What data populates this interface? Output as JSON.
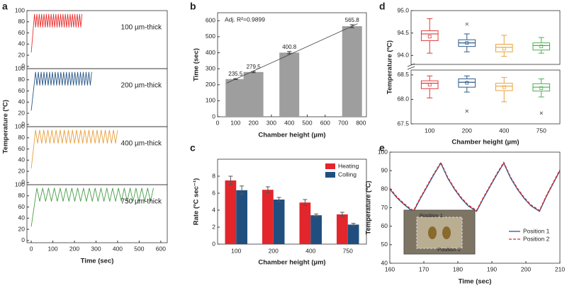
{
  "chart_data": [
    {
      "type": "line",
      "panel_label": "a",
      "stacked": true,
      "xlabel": "Time (sec)",
      "ylabel": "Temperature (ºC)",
      "xlim": [
        -20,
        630
      ],
      "xticks": [
        0,
        100,
        200,
        300,
        400,
        500,
        600
      ],
      "ylim": [
        -4,
        100
      ],
      "yticks": [
        0,
        20,
        40,
        60,
        80,
        100
      ],
      "series": [
        {
          "name": "100 µm-thick",
          "color": "#e8302f",
          "x": [
            0,
            15,
            20.5,
            26,
            31.5,
            37,
            42.5,
            48,
            53.5,
            59,
            64.5,
            70,
            75.5,
            81,
            86.5,
            92,
            97.5,
            103,
            108.5,
            114,
            119.5,
            125,
            130.5,
            136,
            141.5,
            147,
            152.5,
            158,
            163.5,
            169,
            174.5,
            180,
            185.5,
            191,
            196.5,
            202,
            207.5,
            213,
            218.5,
            224,
            229.5,
            235
          ],
          "values": [
            25,
            94,
            70,
            94,
            70,
            94,
            70,
            94,
            70,
            94,
            70,
            94,
            70,
            94,
            70,
            94,
            70,
            94,
            70,
            94,
            70,
            94,
            70,
            94,
            70,
            94,
            70,
            94,
            70,
            94,
            70,
            94,
            70,
            94,
            70,
            94,
            70,
            94,
            70,
            94,
            70,
            94
          ]
        },
        {
          "name": "200 µm-thick",
          "color": "#2b5888",
          "x": [
            0,
            20,
            26.5,
            33,
            39.5,
            46,
            52.5,
            59,
            65.5,
            72,
            78.5,
            85,
            91.5,
            98,
            104.5,
            111,
            117.5,
            124,
            130.5,
            137,
            143.5,
            150,
            156.5,
            163,
            169.5,
            176,
            182.5,
            189,
            195.5,
            202,
            208.5,
            215,
            221.5,
            228,
            234.5,
            241,
            247.5,
            254,
            260.5,
            267,
            273.5,
            280
          ],
          "values": [
            25,
            94,
            70,
            94,
            70,
            94,
            70,
            94,
            70,
            94,
            70,
            94,
            70,
            94,
            70,
            94,
            70,
            94,
            70,
            94,
            70,
            94,
            70,
            94,
            70,
            94,
            70,
            94,
            70,
            94,
            70,
            94,
            70,
            94,
            70,
            94,
            70,
            94,
            70,
            94,
            70,
            94
          ]
        },
        {
          "name": "400 µm-thick",
          "color": "#e8a03c",
          "x": [
            0,
            20,
            29.5,
            39,
            48.5,
            58,
            67.5,
            77,
            86.5,
            96,
            105.5,
            115,
            124.5,
            134,
            143.5,
            153,
            162.5,
            172,
            181.5,
            191,
            200.5,
            210,
            219.5,
            229,
            238.5,
            248,
            257.5,
            267,
            276.5,
            286,
            295.5,
            305,
            314.5,
            324,
            333.5,
            343,
            352.5,
            362,
            371.5,
            381,
            390.5,
            400
          ],
          "values": [
            25,
            94,
            70,
            94,
            70,
            94,
            70,
            94,
            70,
            94,
            70,
            94,
            70,
            94,
            70,
            94,
            70,
            94,
            70,
            94,
            70,
            94,
            70,
            94,
            70,
            94,
            70,
            94,
            70,
            94,
            70,
            94,
            70,
            94,
            70,
            94,
            70,
            94,
            70,
            94,
            70,
            94
          ]
        },
        {
          "name": "750 µm-thick",
          "color": "#4a9e4a",
          "x": [
            0,
            26,
            39.5,
            53,
            66.5,
            80,
            93.5,
            107,
            120.5,
            134,
            147.5,
            161,
            174.5,
            188,
            201.5,
            215,
            228.5,
            242,
            255.5,
            269,
            282.5,
            296,
            309.5,
            323,
            336.5,
            350,
            363.5,
            377,
            390.5,
            404,
            417.5,
            431,
            444.5,
            458,
            471.5,
            485,
            498.5,
            512,
            525.5,
            539,
            552.5,
            566
          ],
          "values": [
            25,
            94,
            70,
            94,
            70,
            94,
            70,
            94,
            70,
            94,
            70,
            94,
            70,
            94,
            70,
            94,
            70,
            94,
            70,
            94,
            70,
            94,
            70,
            94,
            70,
            94,
            70,
            94,
            70,
            94,
            70,
            94,
            70,
            94,
            70,
            94,
            70,
            94,
            70,
            94,
            70,
            94
          ]
        }
      ]
    },
    {
      "type": "bar",
      "panel_label": "b",
      "xlabel": "Chamber height (µm)",
      "ylabel": "Time (sec)",
      "annotation": "Adj. R²=0.9899",
      "x": [
        100,
        200,
        400,
        750
      ],
      "values": [
        235.5,
        279.5,
        400.8,
        565.8
      ],
      "errors": [
        3,
        4,
        7,
        9
      ],
      "color": "#9e9e9e",
      "fit": {
        "x": [
          50,
          780
        ],
        "values": [
          210,
          581
        ]
      },
      "xlim": [
        0,
        830
      ],
      "xticks": [
        0,
        100,
        200,
        300,
        400,
        500,
        600,
        700,
        800
      ],
      "ylim": [
        0,
        650
      ],
      "yticks": [
        0,
        100,
        200,
        300,
        400,
        500,
        600
      ]
    },
    {
      "type": "bar",
      "panel_label": "c",
      "xlabel": "Chamber height (µm)",
      "ylabel": "Rate (ºC sec⁻¹)",
      "legend": "upper right",
      "categories": [
        "100",
        "200",
        "400",
        "750"
      ],
      "series": [
        {
          "name": "Heating",
          "color": "#e3262b",
          "values": [
            7.5,
            6.4,
            4.9,
            3.5
          ],
          "errors": [
            0.5,
            0.35,
            0.35,
            0.25
          ]
        },
        {
          "name": "Colling",
          "color": "#204f7f",
          "values": [
            6.35,
            5.25,
            3.4,
            2.3
          ],
          "errors": [
            0.5,
            0.25,
            0.15,
            0.15
          ]
        }
      ],
      "ylim": [
        0,
        10
      ],
      "yticks": [
        0,
        2,
        4,
        6,
        8
      ]
    },
    {
      "type": "box",
      "panel_label": "d",
      "xlabel": "Chamber height (µm)",
      "ylabel": "Temperature (ºC)",
      "categories": [
        "100",
        "200",
        "400",
        "750"
      ],
      "colors": [
        "#e03b3b",
        "#2d5b8a",
        "#e8a33d",
        "#4caf50"
      ],
      "panels": [
        {
          "ylim": [
            93.8,
            95.0
          ],
          "yticks": [
            {
              "value": 94,
              "label": "94.0"
            },
            94.5,
            {
              "value": 95,
              "label": "95.0"
            }
          ],
          "boxes": [
            {
              "whisker": [
                94.05,
                94.82
              ],
              "box": [
                94.33,
                94.55
              ],
              "median": 94.48,
              "mean": 94.42,
              "outliers": []
            },
            {
              "whisker": [
                94.08,
                94.48
              ],
              "box": [
                94.2,
                94.35
              ],
              "median": 94.28,
              "mean": 94.28,
              "outliers": [
                94.7
              ]
            },
            {
              "whisker": [
                93.98,
                94.45
              ],
              "box": [
                94.08,
                94.25
              ],
              "median": 94.18,
              "mean": 94.15,
              "outliers": []
            },
            {
              "whisker": [
                94.05,
                94.4
              ],
              "box": [
                94.12,
                94.28
              ],
              "median": 94.22,
              "mean": 94.2,
              "outliers": []
            }
          ]
        },
        {
          "ylim": [
            67.5,
            68.6
          ],
          "yticks": [
            67.5,
            {
              "value": 68,
              "label": "68.0"
            },
            68.5
          ],
          "boxes": [
            {
              "whisker": [
                68.03,
                68.48
              ],
              "box": [
                68.22,
                68.38
              ],
              "median": 68.33,
              "mean": 68.3,
              "outliers": []
            },
            {
              "whisker": [
                68.15,
                68.48
              ],
              "box": [
                68.25,
                68.42
              ],
              "median": 68.35,
              "mean": 68.34,
              "outliers": [
                67.76
              ]
            },
            {
              "whisker": [
                67.95,
                68.45
              ],
              "box": [
                68.18,
                68.33
              ],
              "median": 68.27,
              "mean": 68.25,
              "outliers": []
            },
            {
              "whisker": [
                68.05,
                68.42
              ],
              "box": [
                68.17,
                68.32
              ],
              "median": 68.25,
              "mean": 68.23,
              "outliers": [
                67.72
              ]
            }
          ]
        }
      ]
    },
    {
      "type": "line",
      "panel_label": "e",
      "xlabel": "Time (sec)",
      "ylabel": "Temperature (ºC)",
      "legend": "lower right",
      "inset_labels": [
        "Position 1",
        "Position 2"
      ],
      "x": [
        160,
        162,
        164,
        166,
        167,
        169,
        171,
        173,
        175,
        177,
        179,
        181,
        183,
        185.5,
        187.5,
        189.5,
        191.5,
        193.5,
        195.5,
        197.5,
        199.5,
        201.5,
        204,
        206,
        208,
        210
      ],
      "series": [
        {
          "name": "Position 1",
          "color": "#2b5888",
          "line_style": "solid",
          "values": [
            80,
            75.5,
            72,
            69,
            68,
            75,
            81.5,
            88,
            94,
            86,
            80,
            75,
            71,
            68,
            75,
            81.5,
            88,
            94,
            86,
            80,
            75,
            71,
            68,
            76,
            83,
            90
          ]
        },
        {
          "name": "Position 2",
          "color": "#e3262b",
          "line_style": "dashed",
          "values": [
            80.5,
            76,
            72.5,
            69.5,
            68.5,
            75.5,
            82,
            88.5,
            94.5,
            86.5,
            80.5,
            75.5,
            71.5,
            68.5,
            75.5,
            82,
            88.5,
            94.5,
            86.5,
            80.5,
            75.5,
            71.5,
            68.5,
            76.5,
            83.5,
            90.5
          ]
        }
      ],
      "xlim": [
        160,
        210
      ],
      "xticks": [
        160,
        170,
        180,
        190,
        200,
        210
      ],
      "ylim": [
        40,
        100
      ],
      "yticks": [
        40,
        50,
        60,
        70,
        80,
        90,
        100
      ]
    }
  ]
}
